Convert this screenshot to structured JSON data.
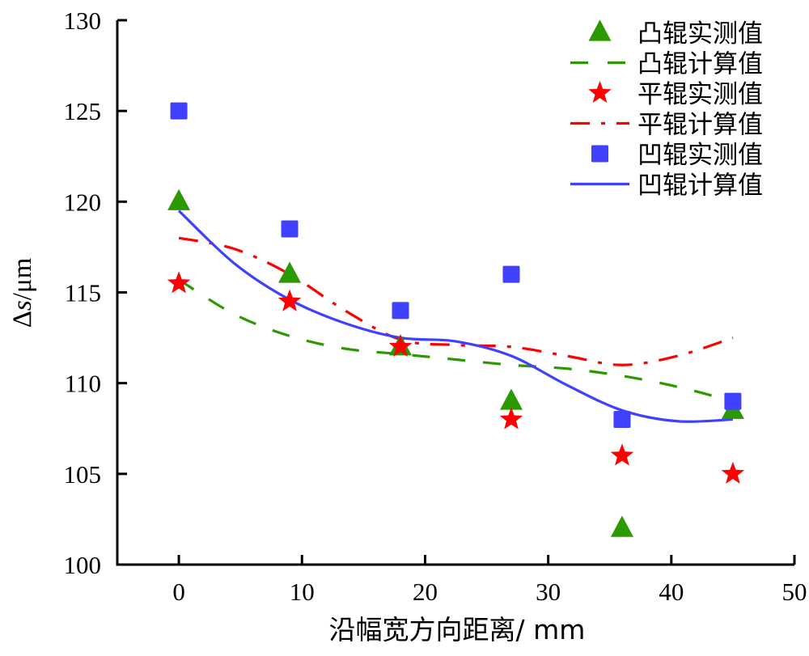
{
  "chart_data": {
    "type": "scatter",
    "title": "",
    "xlabel": "沿幅宽方向距离/ mm",
    "ylabel_parts": {
      "delta": "Δ",
      "var": "s",
      "unit": "/μm"
    },
    "ylabel": "Δs/μm",
    "xlim": [
      -5,
      50
    ],
    "ylim": [
      100,
      130
    ],
    "xticks": [
      0,
      10,
      20,
      30,
      40,
      50
    ],
    "yticks": [
      100,
      105,
      110,
      115,
      120,
      125,
      130
    ],
    "grid": false,
    "legend_position": "top-right",
    "series": [
      {
        "name": "凸辊实测值",
        "kind": "marker",
        "marker": "triangle",
        "color": "#2a9a00",
        "x": [
          0,
          9,
          18,
          27,
          36,
          45
        ],
        "y": [
          120,
          116,
          112,
          109,
          102,
          108.5
        ]
      },
      {
        "name": "凸辊计算值",
        "kind": "line",
        "dash": "dashed",
        "color": "#2a9a00",
        "x": [
          0,
          4.5,
          9,
          13.5,
          18,
          22.5,
          27,
          31.5,
          36,
          40.5,
          45
        ],
        "y": [
          115.7,
          113.8,
          112.6,
          111.9,
          111.6,
          111.3,
          111.0,
          110.8,
          110.4,
          109.8,
          109.0
        ]
      },
      {
        "name": "平辊实测值",
        "kind": "marker",
        "marker": "star",
        "color": "#ff0000",
        "x": [
          0,
          9,
          18,
          27,
          36,
          45
        ],
        "y": [
          115.5,
          114.5,
          112,
          108,
          106,
          105
        ]
      },
      {
        "name": "平辊计算值",
        "kind": "line",
        "dash": "dashdot",
        "color": "#ff0000",
        "x": [
          0,
          4.5,
          9,
          13.5,
          18,
          22.5,
          27,
          31.5,
          36,
          40.5,
          45
        ],
        "y": [
          118.0,
          117.4,
          116.0,
          114.0,
          112.4,
          112.1,
          112.0,
          111.5,
          111.0,
          111.5,
          112.5
        ]
      },
      {
        "name": "凹辊实测值",
        "kind": "marker",
        "marker": "square",
        "color": "#4040ff",
        "x": [
          0,
          9,
          18,
          27,
          36,
          45
        ],
        "y": [
          125,
          118.5,
          114,
          116,
          108,
          109
        ]
      },
      {
        "name": "凹辊计算值",
        "kind": "line",
        "dash": "solid",
        "color": "#4040ff",
        "x": [
          0,
          4.5,
          9,
          13.5,
          18,
          22.5,
          27,
          31.5,
          36,
          40.5,
          45
        ],
        "y": [
          119.5,
          116.6,
          114.6,
          113.3,
          112.5,
          112.3,
          111.5,
          109.9,
          108.5,
          107.9,
          108.0
        ]
      }
    ]
  }
}
